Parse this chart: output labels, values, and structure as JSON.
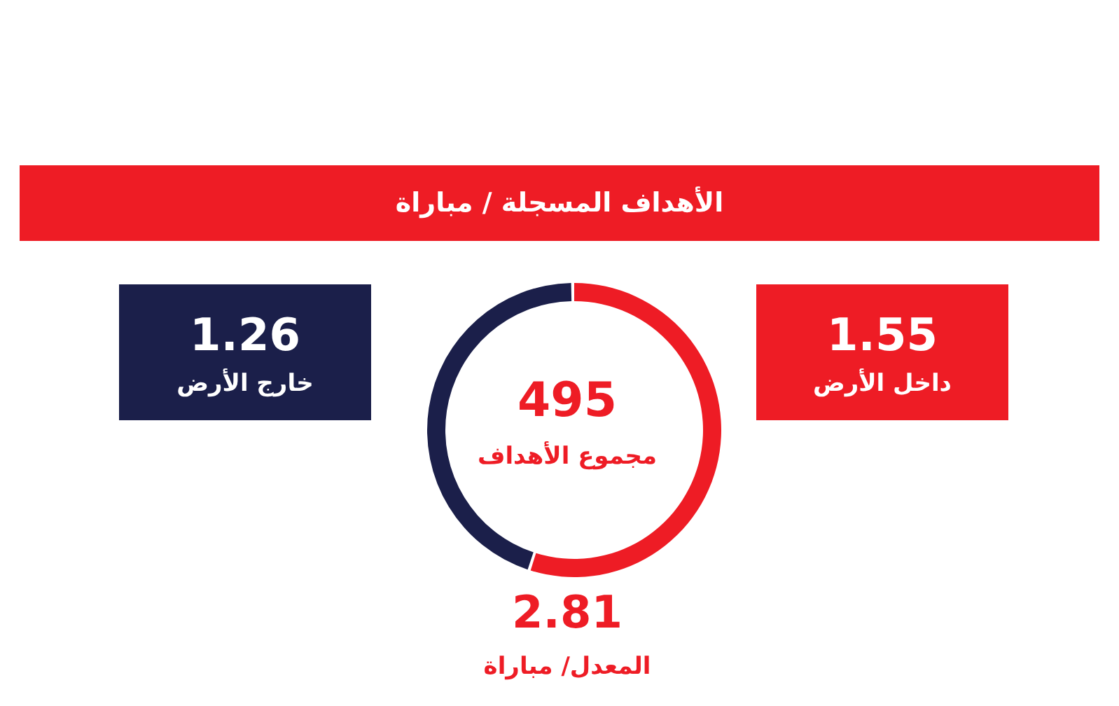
{
  "chart_data": {
    "type": "donut",
    "title": "الأهداف المسجلة / مباراة",
    "categories": [
      "داخل الأرض",
      "خارج الأرض"
    ],
    "values": [
      1.55,
      1.26
    ],
    "colors": [
      "#ee1c25",
      "#1b1f4a"
    ],
    "data_labels": true,
    "annotations": [
      "495",
      "مجموع الأهداف",
      "2.81",
      "المعدل/ مباراة"
    ]
  }
}
